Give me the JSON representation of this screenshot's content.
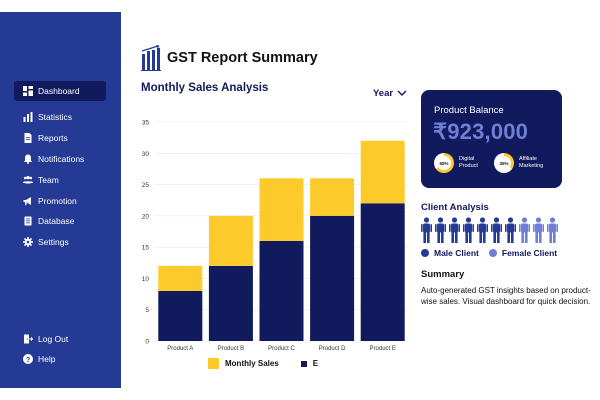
{
  "sidebar": {
    "items": [
      {
        "label": "Dashboard",
        "icon": "dashboard-icon",
        "active": true
      },
      {
        "label": "Statistics",
        "icon": "statistics-icon"
      },
      {
        "label": "Reports",
        "icon": "reports-icon"
      },
      {
        "label": "Notifications",
        "icon": "bell-icon"
      },
      {
        "label": "Team",
        "icon": "team-icon"
      },
      {
        "label": "Promotion",
        "icon": "megaphone-icon"
      },
      {
        "label": "Database",
        "icon": "database-icon"
      },
      {
        "label": "Settings",
        "icon": "gear-icon"
      }
    ],
    "bottom_items": [
      {
        "label": "Log Out",
        "icon": "logout-icon"
      },
      {
        "label": "Help",
        "icon": "help-icon"
      }
    ]
  },
  "header": {
    "title": "GST Report Summary",
    "logo_icon": "bar-chart-logo-icon"
  },
  "sales": {
    "title": "Monthly Sales Analysis",
    "period_select": "Year"
  },
  "chart_data": {
    "type": "bar",
    "stacked": true,
    "categories": [
      "Product A",
      "Product B",
      "Product C",
      "Product D",
      "Product E"
    ],
    "series": [
      {
        "name": "E",
        "values": [
          8,
          12,
          16,
          20,
          22
        ],
        "color": "#111a5c"
      },
      {
        "name": "Monthly Sales",
        "values": [
          4,
          8,
          10,
          6,
          10
        ],
        "color": "#fccb2b"
      }
    ],
    "ylim": [
      0,
      35
    ],
    "yticks": [
      0,
      5,
      10,
      15,
      20,
      25,
      30,
      35
    ],
    "grid": true,
    "legend": "bottom"
  },
  "balance": {
    "label": "Product Balance",
    "value": "₹923,000",
    "items": [
      {
        "percent": "65%",
        "value": 0.65,
        "label_line1": "Digital",
        "label_line2": "Product"
      },
      {
        "percent": "35%",
        "value": 0.35,
        "label_line1": "Affiliate",
        "label_line2": "Marketing"
      }
    ]
  },
  "clients": {
    "title": "Client Analysis",
    "male_count": 7,
    "female_count": 3,
    "male_label": "Male Client",
    "female_label": "Female Client",
    "male_color": "#243a95",
    "female_color": "#6f7fd6"
  },
  "summary": {
    "title": "Summary",
    "text": "Auto-generated GST insights based on product-wise sales. Visual dashboard for quick decision."
  },
  "colors": {
    "navy": "#111a5c",
    "sidebar": "#243a95",
    "accent": "#fccb2b",
    "light_blue": "#6f7fd6"
  }
}
